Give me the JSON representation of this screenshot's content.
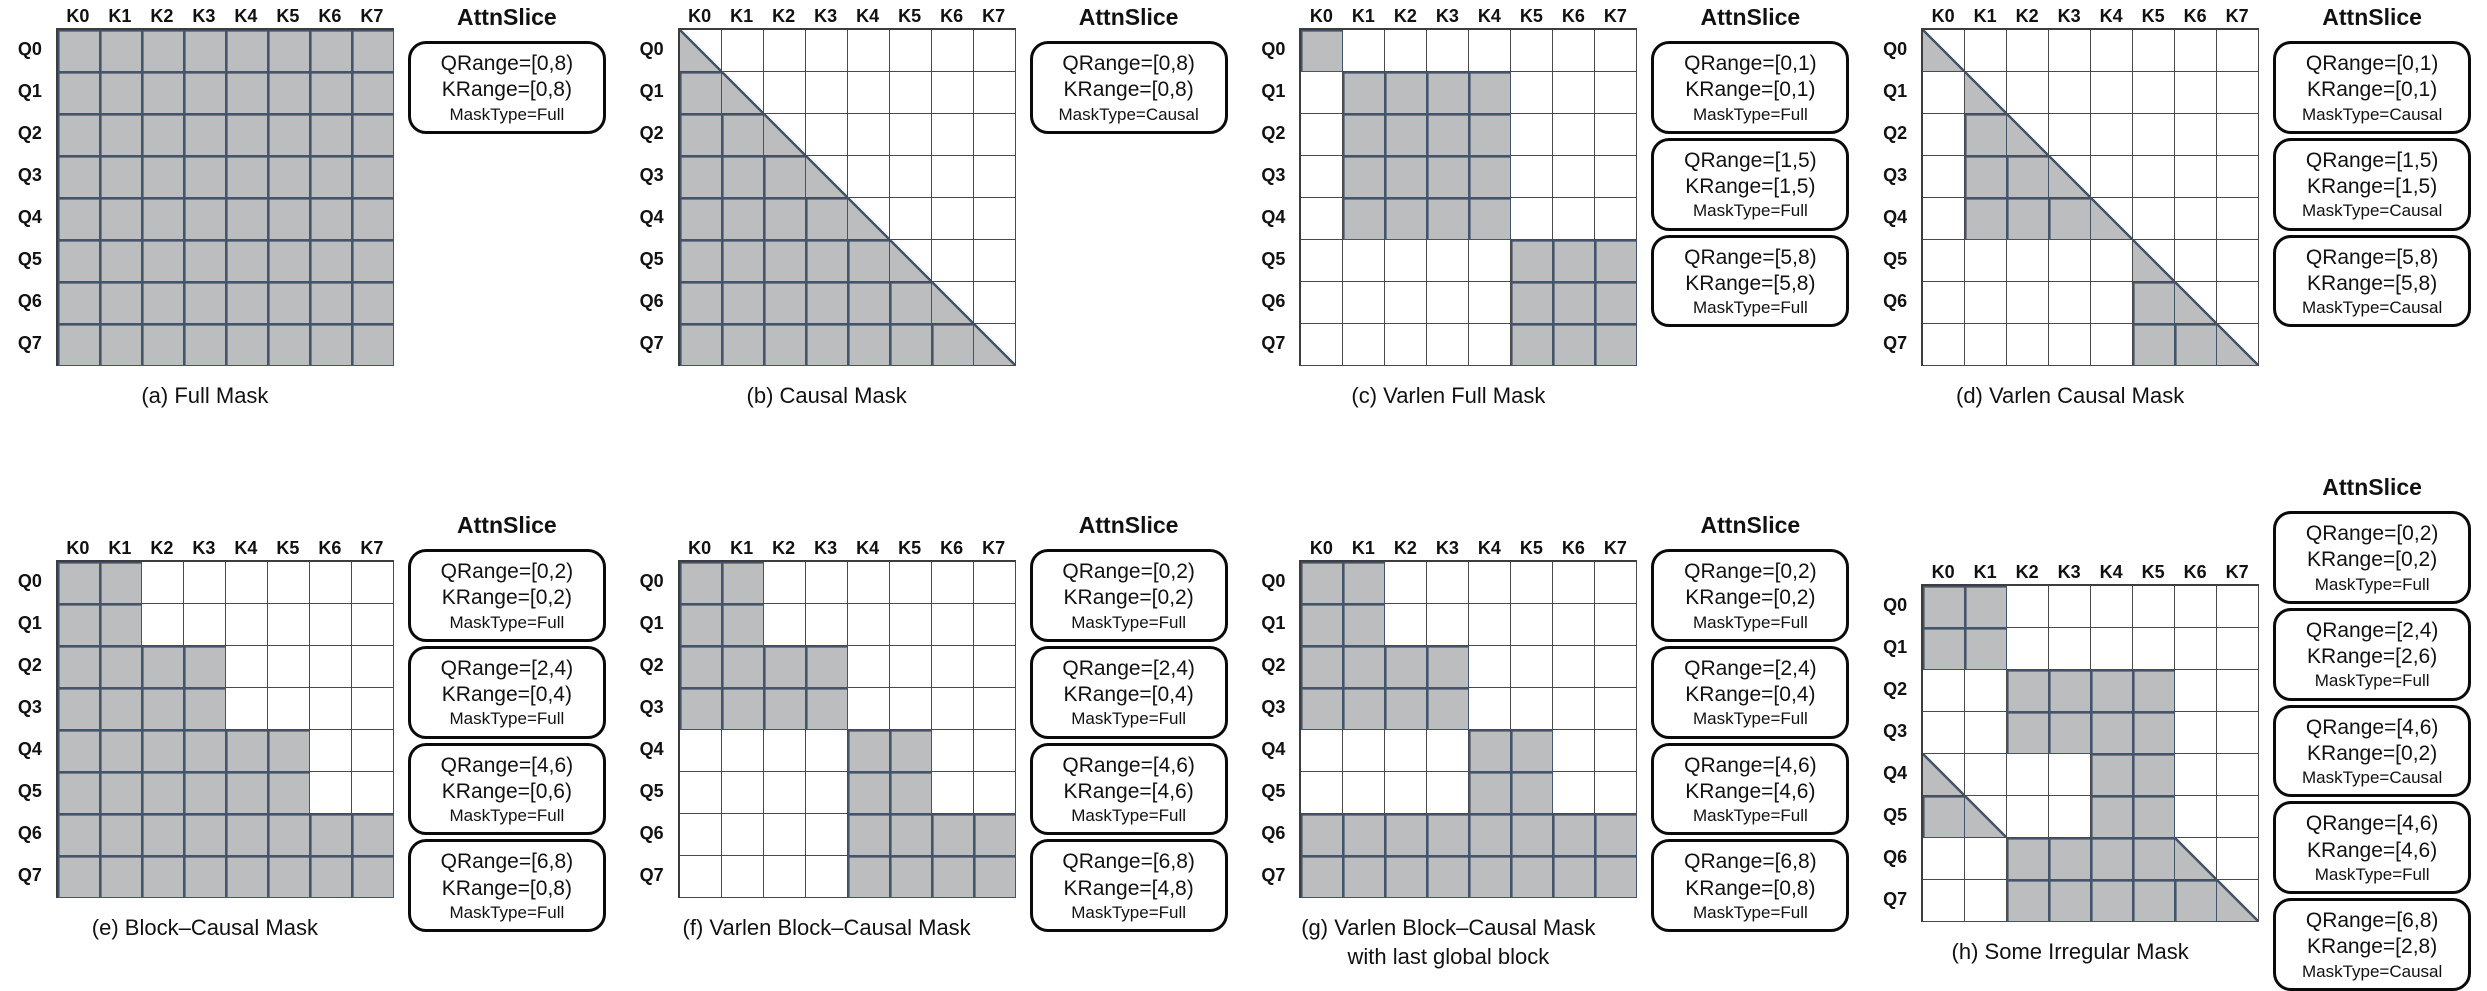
{
  "colors": {
    "mask_fill": "#bcbdbf",
    "mask_border": "#44546a",
    "grid_line": "#4a4a4a",
    "box_border": "#0a0a0a",
    "text": "#111111"
  },
  "attn_slice_title": "AttnSlice",
  "k_labels": [
    "K0",
    "K1",
    "K2",
    "K3",
    "K4",
    "K5",
    "K6",
    "K7"
  ],
  "q_labels": [
    "Q0",
    "Q1",
    "Q2",
    "Q3",
    "Q4",
    "Q5",
    "Q6",
    "Q7"
  ],
  "panels": [
    {
      "id": "a",
      "caption_lines": [
        "(a) Full Mask"
      ],
      "mask_rows": [
        "FFFFFFFF",
        "FFFFFFFF",
        "FFFFFFFF",
        "FFFFFFFF",
        "FFFFFFFF",
        "FFFFFFFF",
        "FFFFFFFF",
        "FFFFFFFF"
      ],
      "slices": [
        {
          "qrange": "QRange=[0,8)",
          "krange": "KRange=[0,8)",
          "masktype": "MaskType=Full"
        }
      ]
    },
    {
      "id": "b",
      "caption_lines": [
        "(b) Causal Mask"
      ],
      "mask_rows": [
        "T.......",
        "FT......",
        "FFT.....",
        "FFFT....",
        "FFFFT...",
        "FFFFFT..",
        "FFFFFFT.",
        "FFFFFFFT"
      ],
      "slices": [
        {
          "qrange": "QRange=[0,8)",
          "krange": "KRange=[0,8)",
          "masktype": "MaskType=Causal"
        }
      ]
    },
    {
      "id": "c",
      "caption_lines": [
        "(c) Varlen Full Mask"
      ],
      "mask_rows": [
        "F.......",
        ".FFFF...",
        ".FFFF...",
        ".FFFF...",
        ".FFFF...",
        ".....FFF",
        ".....FFF",
        ".....FFF"
      ],
      "slices": [
        {
          "qrange": "QRange=[0,1)",
          "krange": "KRange=[0,1)",
          "masktype": "MaskType=Full"
        },
        {
          "qrange": "QRange=[1,5)",
          "krange": "KRange=[1,5)",
          "masktype": "MaskType=Full"
        },
        {
          "qrange": "QRange=[5,8)",
          "krange": "KRange=[5,8)",
          "masktype": "MaskType=Full"
        }
      ]
    },
    {
      "id": "d",
      "caption_lines": [
        "(d) Varlen Causal Mask"
      ],
      "mask_rows": [
        "T.......",
        ".T......",
        ".FT.....",
        ".FFT....",
        ".FFFT...",
        ".....T..",
        ".....FT.",
        ".....FFT"
      ],
      "slices": [
        {
          "qrange": "QRange=[0,1)",
          "krange": "KRange=[0,1)",
          "masktype": "MaskType=Causal"
        },
        {
          "qrange": "QRange=[1,5)",
          "krange": "KRange=[1,5)",
          "masktype": "MaskType=Causal"
        },
        {
          "qrange": "QRange=[5,8)",
          "krange": "KRange=[5,8)",
          "masktype": "MaskType=Causal"
        }
      ]
    },
    {
      "id": "e",
      "caption_lines": [
        "(e) Block–Causal Mask"
      ],
      "mask_rows": [
        "FF......",
        "FF......",
        "FFFF....",
        "FFFF....",
        "FFFFFF..",
        "FFFFFF..",
        "FFFFFFFF",
        "FFFFFFFF"
      ],
      "slices": [
        {
          "qrange": "QRange=[0,2)",
          "krange": "KRange=[0,2)",
          "masktype": "MaskType=Full"
        },
        {
          "qrange": "QRange=[2,4)",
          "krange": "KRange=[0,4)",
          "masktype": "MaskType=Full"
        },
        {
          "qrange": "QRange=[4,6)",
          "krange": "KRange=[0,6)",
          "masktype": "MaskType=Full"
        },
        {
          "qrange": "QRange=[6,8)",
          "krange": "KRange=[0,8)",
          "masktype": "MaskType=Full"
        }
      ]
    },
    {
      "id": "f",
      "caption_lines": [
        "(f) Varlen Block–Causal Mask"
      ],
      "mask_rows": [
        "FF......",
        "FF......",
        "FFFF....",
        "FFFF....",
        "....FF..",
        "....FF..",
        "....FFFF",
        "....FFFF"
      ],
      "slices": [
        {
          "qrange": "QRange=[0,2)",
          "krange": "KRange=[0,2)",
          "masktype": "MaskType=Full"
        },
        {
          "qrange": "QRange=[2,4)",
          "krange": "KRange=[0,4)",
          "masktype": "MaskType=Full"
        },
        {
          "qrange": "QRange=[4,6)",
          "krange": "KRange=[4,6)",
          "masktype": "MaskType=Full"
        },
        {
          "qrange": "QRange=[6,8)",
          "krange": "KRange=[4,8)",
          "masktype": "MaskType=Full"
        }
      ]
    },
    {
      "id": "g",
      "caption_lines": [
        "(g) Varlen Block–Causal Mask",
        "with last global block"
      ],
      "mask_rows": [
        "FF......",
        "FF......",
        "FFFF....",
        "FFFF....",
        "....FF..",
        "....FF..",
        "FFFFFFFF",
        "FFFFFFFF"
      ],
      "slices": [
        {
          "qrange": "QRange=[0,2)",
          "krange": "KRange=[0,2)",
          "masktype": "MaskType=Full"
        },
        {
          "qrange": "QRange=[2,4)",
          "krange": "KRange=[0,4)",
          "masktype": "MaskType=Full"
        },
        {
          "qrange": "QRange=[4,6)",
          "krange": "KRange=[4,6)",
          "masktype": "MaskType=Full"
        },
        {
          "qrange": "QRange=[6,8)",
          "krange": "KRange=[0,8)",
          "masktype": "MaskType=Full"
        }
      ]
    },
    {
      "id": "h",
      "caption_lines": [
        "(h) Some Irregular Mask"
      ],
      "mask_rows": [
        "FF......",
        "FF......",
        "..FFFF..",
        "..FFFF..",
        "T...FF..",
        "FT..FF..",
        "..FFFFT.",
        "..FFFFFT"
      ],
      "slices": [
        {
          "qrange": "QRange=[0,2)",
          "krange": "KRange=[0,2)",
          "masktype": "MaskType=Full"
        },
        {
          "qrange": "QRange=[2,4)",
          "krange": "KRange=[2,6)",
          "masktype": "MaskType=Full"
        },
        {
          "qrange": "QRange=[4,6)",
          "krange": "KRange=[0,2)",
          "masktype": "MaskType=Causal"
        },
        {
          "qrange": "QRange=[4,6)",
          "krange": "KRange=[4,6)",
          "masktype": "MaskType=Full"
        },
        {
          "qrange": "QRange=[6,8)",
          "krange": "KRange=[2,8)",
          "masktype": "MaskType=Causal"
        }
      ]
    }
  ]
}
